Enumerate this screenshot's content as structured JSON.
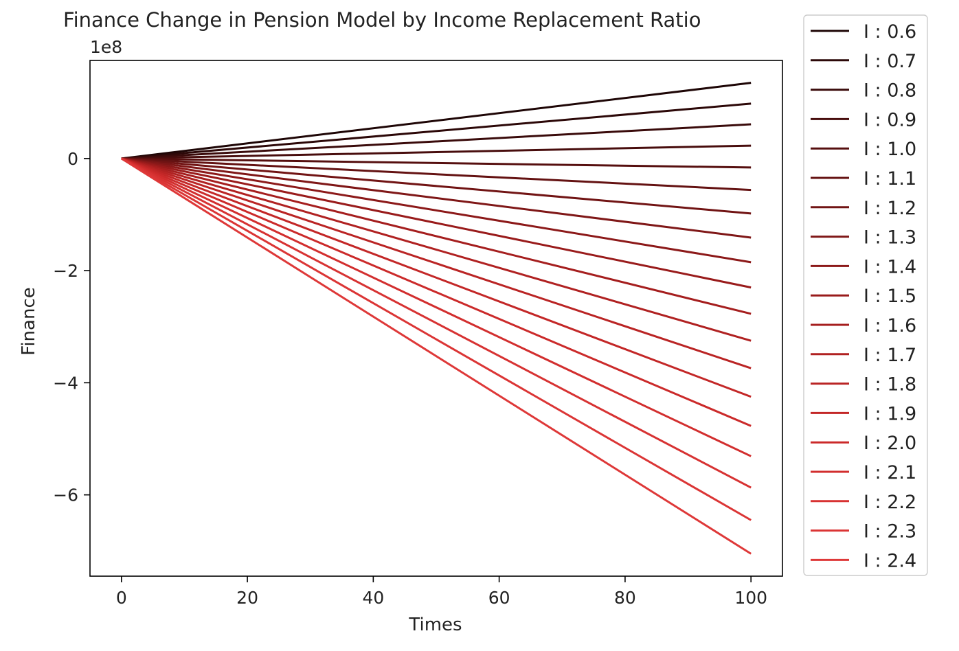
{
  "chart_data": {
    "type": "line",
    "title": "Finance Change in Pension Model by Income Replacement Ratio",
    "xlabel": "Times",
    "ylabel": "Finance",
    "y_offset_label": "1e8",
    "xlim": [
      -5,
      105
    ],
    "ylim": [
      -7.45,
      1.75
    ],
    "xticks": [
      0,
      20,
      40,
      60,
      80,
      100
    ],
    "xtick_labels": [
      "0",
      "20",
      "40",
      "60",
      "80",
      "100"
    ],
    "yticks": [
      0,
      -2,
      -4,
      -6
    ],
    "ytick_labels": [
      "0",
      "−2",
      "−4",
      "−6"
    ],
    "x": [
      0,
      100
    ],
    "grid": false,
    "legend_position": "outside-right",
    "series": [
      {
        "name": "I : 0.6",
        "values": [
          0,
          1.35
        ],
        "color": "#1e0606"
      },
      {
        "name": "I : 0.7",
        "values": [
          0,
          0.98
        ],
        "color": "#2c0808"
      },
      {
        "name": "I : 0.8",
        "values": [
          0,
          0.61
        ],
        "color": "#3a0b0b"
      },
      {
        "name": "I : 0.9",
        "values": [
          0,
          0.23
        ],
        "color": "#480d0d"
      },
      {
        "name": "I : 1.0",
        "values": [
          0,
          -0.16
        ],
        "color": "#560f0f"
      },
      {
        "name": "I : 1.1",
        "values": [
          0,
          -0.56
        ],
        "color": "#641212"
      },
      {
        "name": "I : 1.2",
        "values": [
          0,
          -0.98
        ],
        "color": "#711414"
      },
      {
        "name": "I : 1.3",
        "values": [
          0,
          -1.41
        ],
        "color": "#7f1717"
      },
      {
        "name": "I : 1.4",
        "values": [
          0,
          -1.85
        ],
        "color": "#8c1919"
      },
      {
        "name": "I : 1.5",
        "values": [
          0,
          -2.3
        ],
        "color": "#991b1b"
      },
      {
        "name": "I : 1.6",
        "values": [
          0,
          -2.77
        ],
        "color": "#a51e1e"
      },
      {
        "name": "I : 1.7",
        "values": [
          0,
          -3.25
        ],
        "color": "#b02121"
      },
      {
        "name": "I : 1.8",
        "values": [
          0,
          -3.74
        ],
        "color": "#ba2424"
      },
      {
        "name": "I : 1.9",
        "values": [
          0,
          -4.25
        ],
        "color": "#c32727"
      },
      {
        "name": "I : 2.0",
        "values": [
          0,
          -4.77
        ],
        "color": "#cb2a2a"
      },
      {
        "name": "I : 2.1",
        "values": [
          0,
          -5.31
        ],
        "color": "#d22e2e"
      },
      {
        "name": "I : 2.2",
        "values": [
          0,
          -5.87
        ],
        "color": "#d73232"
      },
      {
        "name": "I : 2.3",
        "values": [
          0,
          -6.45
        ],
        "color": "#db3535"
      },
      {
        "name": "I : 2.4",
        "values": [
          0,
          -7.05
        ],
        "color": "#de3838"
      }
    ]
  }
}
